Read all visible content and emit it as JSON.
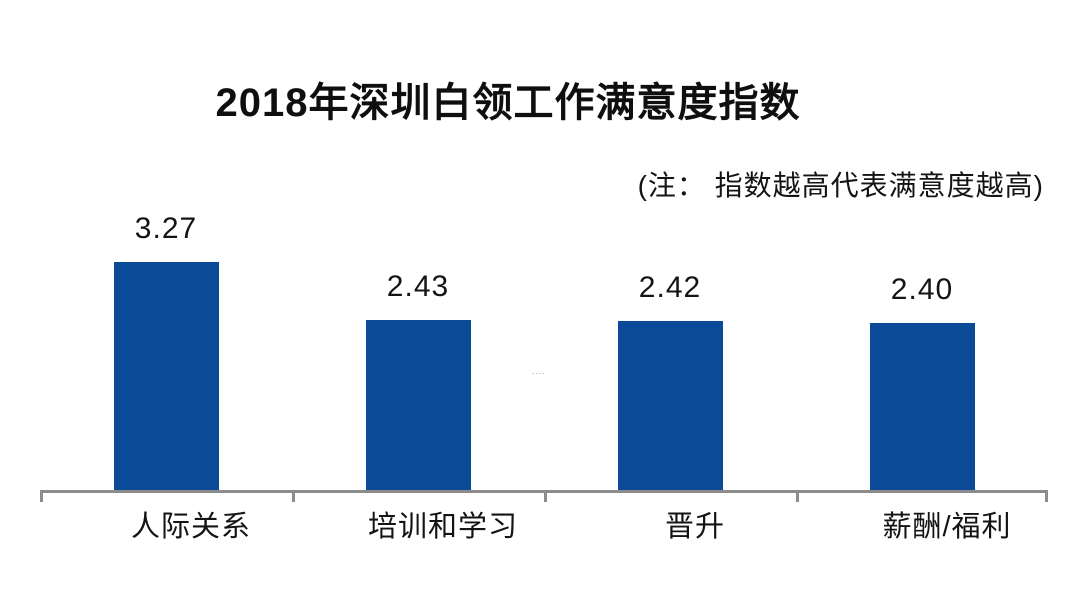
{
  "chart_data": {
    "type": "bar",
    "title": "2018年深圳白领工作满意度指数",
    "note": "(注： 指数越高代表满意度越高)",
    "categories": [
      "人际关系",
      "培训和学习",
      "晋升",
      "薪酬/福利"
    ],
    "values": [
      3.27,
      2.43,
      2.42,
      2.4
    ],
    "value_labels": [
      "3.27",
      "2.43",
      "2.42",
      "2.40"
    ],
    "ylim": [
      0,
      3.6
    ],
    "grid": false,
    "legend_position": "none",
    "bar_color": "#0b4a96",
    "axis_color": "#8c8c8c",
    "text_color": "#141414",
    "watermark": "...."
  }
}
